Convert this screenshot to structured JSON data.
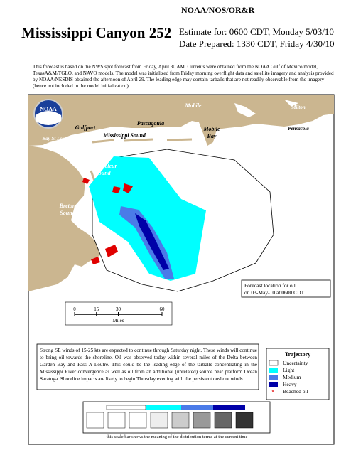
{
  "header": {
    "agency": "NOAA/NOS/OR&R",
    "title": "Mississippi Canyon 252",
    "estimate": "Estimate for: 0600 CDT, Monday 5/03/10",
    "prepared": "Date Prepared: 1330 CDT, Friday 4/30/10"
  },
  "intro": "This forecast is based on the NWS spot forecast from Friday, April 30 AM. Currents were obtained from the NOAA Gulf of Mexico model, TexasA&M/TGLO, and NAVO models. The model was initialized from Friday morning overflight data and satellite imagery and analysis provided by NOAA/NESDIS obtained the afternoon of April 29. The leading edge may contain tarballs that are not readily observable from the imagery (hence not included in the model initialization).",
  "map": {
    "logo": "NOAA",
    "labels": [
      [
        "Mobile"
      ],
      [
        "Milton"
      ],
      [
        "Pascagoula"
      ],
      [
        "Pensacola"
      ],
      [
        "Gulfport"
      ],
      [
        "Bay St Louis"
      ],
      [
        "Mississippi Sound"
      ],
      [
        "Mobile",
        "Bay"
      ],
      [
        "Chandeleur",
        "Sound"
      ],
      [
        "Breton",
        "Sound"
      ]
    ],
    "forecast_note": [
      "Forecast location for oil",
      "on 03-May-10 at 0600 CDT"
    ]
  },
  "scale": {
    "ticks": [
      0,
      15,
      30,
      60
    ],
    "unit": "Miles"
  },
  "outlook": "Strong SE winds of 15-25 kts are expected to continue through Saturday night. These winds will continue to bring oil towards the shoreline. Oil was observed today within several miles of the Delta between Garden Bay and Pass A Loutre. This could be the leading edge of the tarballs concentrating in the Mississippi River convergence as well as oil from an additional (unrelated) source near platform Ocean Saratoga. Shoreline impacts are likely to begin Thursday evening with the persistent onshore winds.",
  "legend": {
    "title": "Trajectory",
    "items": [
      "Uncertainty",
      "Light",
      "Medium",
      "Heavy",
      "Beached oil"
    ]
  },
  "scale_bar_caption": "this scale bar shows the meaning of the distribution terms at the current time"
}
